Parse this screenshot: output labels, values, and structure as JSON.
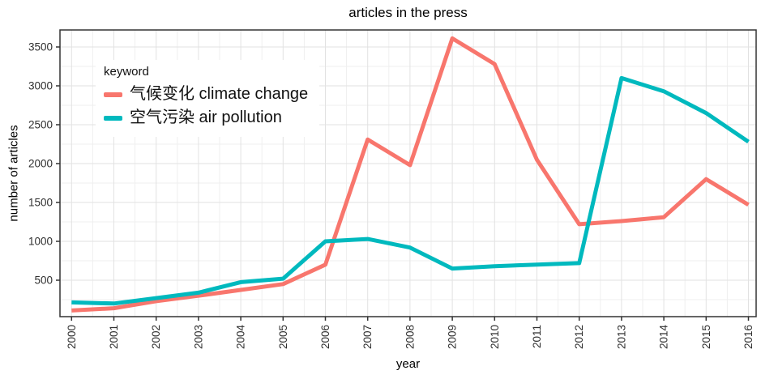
{
  "chart_data": {
    "type": "line",
    "title": "articles in the press",
    "xlabel": "year",
    "ylabel": "number of articles",
    "legend_title": "keyword",
    "legend_position": "inside-top-left",
    "grid": "major+minor",
    "x": [
      2000,
      2001,
      2002,
      2003,
      2004,
      2005,
      2006,
      2007,
      2008,
      2009,
      2010,
      2011,
      2012,
      2013,
      2014,
      2015,
      2016
    ],
    "series": [
      {
        "name": "气候变化 climate change",
        "color": "#F8766D",
        "values": [
          110,
          140,
          230,
          300,
          375,
          450,
          700,
          2310,
          1980,
          3610,
          3280,
          2050,
          1220,
          1260,
          1310,
          1800,
          1470
        ]
      },
      {
        "name": "空气污染 air pollution",
        "color": "#00B9BE",
        "values": [
          215,
          200,
          270,
          340,
          475,
          520,
          1000,
          1030,
          920,
          650,
          680,
          700,
          720,
          3100,
          2930,
          2650,
          2280
        ]
      }
    ],
    "ylim": [
      40,
      3720
    ],
    "yticks": [
      500,
      1000,
      1500,
      2000,
      2500,
      3000,
      3500
    ],
    "colors": {
      "grid_major": "#E2E2E2",
      "grid_minor": "#EFEFEF",
      "panel_border": "#333333",
      "axis_text": "#303030",
      "tick_mark": "#333333",
      "background": "#FFFFFF"
    }
  }
}
